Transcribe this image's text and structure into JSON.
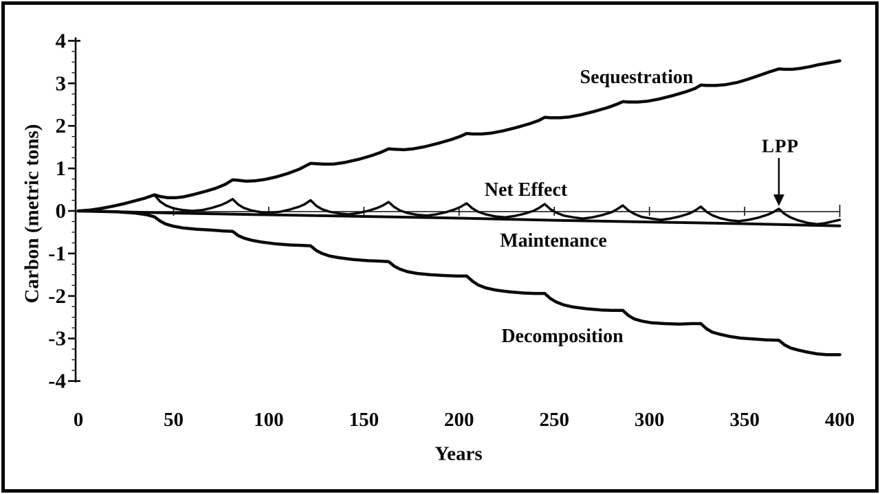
{
  "figure": {
    "background_color": "#ffffff",
    "frame_color": "#050505",
    "ink_color": "#0a0a0a"
  },
  "chart_data": {
    "type": "line",
    "title": "",
    "xlabel": "Years",
    "ylabel": "Carbon (metric tons)",
    "xlim": [
      0,
      400
    ],
    "ylim": [
      -4,
      4
    ],
    "x_ticks": [
      0,
      50,
      100,
      150,
      200,
      250,
      300,
      350,
      400
    ],
    "y_ticks": [
      4,
      3,
      2,
      1,
      0,
      -1,
      -2,
      -3,
      -4
    ],
    "grid": "off",
    "legend": "inline-labels",
    "zero_line": true,
    "zero_line_tick_years": [
      50,
      100,
      150,
      200,
      250,
      300,
      350,
      400
    ],
    "harvest_cycle_years": 41,
    "series": [
      {
        "name": "sequestration",
        "label": "Sequestration",
        "stroke_width": 4.5,
        "points": [
          [
            0,
            0
          ],
          [
            6,
            0.02
          ],
          [
            12,
            0.06
          ],
          [
            18,
            0.11
          ],
          [
            24,
            0.17
          ],
          [
            30,
            0.24
          ],
          [
            35,
            0.3
          ],
          [
            40,
            0.38
          ],
          [
            43,
            0.34
          ],
          [
            47,
            0.31
          ],
          [
            51,
            0.31
          ],
          [
            55,
            0.33
          ],
          [
            60,
            0.38
          ],
          [
            66,
            0.45
          ],
          [
            72,
            0.53
          ],
          [
            77,
            0.62
          ],
          [
            81,
            0.73
          ],
          [
            84,
            0.72
          ],
          [
            88,
            0.7
          ],
          [
            93,
            0.71
          ],
          [
            98,
            0.74
          ],
          [
            104,
            0.8
          ],
          [
            110,
            0.88
          ],
          [
            116,
            0.98
          ],
          [
            122,
            1.12
          ],
          [
            125,
            1.11
          ],
          [
            129,
            1.1
          ],
          [
            134,
            1.1
          ],
          [
            140,
            1.14
          ],
          [
            147,
            1.21
          ],
          [
            154,
            1.3
          ],
          [
            159,
            1.38
          ],
          [
            163,
            1.46
          ],
          [
            166,
            1.45
          ],
          [
            171,
            1.44
          ],
          [
            176,
            1.46
          ],
          [
            182,
            1.51
          ],
          [
            189,
            1.59
          ],
          [
            196,
            1.68
          ],
          [
            201,
            1.76
          ],
          [
            204,
            1.82
          ],
          [
            207,
            1.81
          ],
          [
            212,
            1.81
          ],
          [
            217,
            1.83
          ],
          [
            223,
            1.88
          ],
          [
            230,
            1.96
          ],
          [
            237,
            2.05
          ],
          [
            242,
            2.13
          ],
          [
            245,
            2.2
          ],
          [
            248,
            2.19
          ],
          [
            253,
            2.19
          ],
          [
            258,
            2.21
          ],
          [
            264,
            2.26
          ],
          [
            271,
            2.34
          ],
          [
            278,
            2.43
          ],
          [
            283,
            2.51
          ],
          [
            286,
            2.57
          ],
          [
            289,
            2.56
          ],
          [
            294,
            2.56
          ],
          [
            299,
            2.58
          ],
          [
            305,
            2.63
          ],
          [
            312,
            2.71
          ],
          [
            319,
            2.8
          ],
          [
            324,
            2.88
          ],
          [
            327,
            2.96
          ],
          [
            330,
            2.95
          ],
          [
            335,
            2.95
          ],
          [
            340,
            2.97
          ],
          [
            346,
            3.02
          ],
          [
            352,
            3.1
          ],
          [
            358,
            3.19
          ],
          [
            363,
            3.27
          ],
          [
            368,
            3.34
          ],
          [
            371,
            3.33
          ],
          [
            375,
            3.33
          ],
          [
            379,
            3.35
          ],
          [
            384,
            3.39
          ],
          [
            389,
            3.44
          ],
          [
            394,
            3.48
          ],
          [
            400,
            3.53
          ]
        ]
      },
      {
        "name": "net_effect",
        "label": "Net Effect",
        "stroke_width": 3.5,
        "points": [
          [
            0,
            0
          ],
          [
            6,
            0.02
          ],
          [
            12,
            0.06
          ],
          [
            18,
            0.11
          ],
          [
            24,
            0.17
          ],
          [
            30,
            0.24
          ],
          [
            35,
            0.3
          ],
          [
            40,
            0.37
          ],
          [
            43,
            0.22
          ],
          [
            46,
            0.13
          ],
          [
            50,
            0.06
          ],
          [
            55,
            0.02
          ],
          [
            60,
            0.0
          ],
          [
            65,
            0.02
          ],
          [
            70,
            0.07
          ],
          [
            75,
            0.14
          ],
          [
            78,
            0.2
          ],
          [
            81,
            0.28
          ],
          [
            84,
            0.15
          ],
          [
            87,
            0.07
          ],
          [
            91,
            0.01
          ],
          [
            96,
            -0.03
          ],
          [
            101,
            -0.04
          ],
          [
            106,
            -0.02
          ],
          [
            111,
            0.03
          ],
          [
            116,
            0.1
          ],
          [
            119,
            0.16
          ],
          [
            122,
            0.25
          ],
          [
            125,
            0.12
          ],
          [
            128,
            0.04
          ],
          [
            132,
            -0.02
          ],
          [
            137,
            -0.06
          ],
          [
            142,
            -0.08
          ],
          [
            147,
            -0.05
          ],
          [
            152,
            0.0
          ],
          [
            157,
            0.07
          ],
          [
            160,
            0.13
          ],
          [
            163,
            0.21
          ],
          [
            166,
            0.09
          ],
          [
            169,
            0.01
          ],
          [
            173,
            -0.05
          ],
          [
            178,
            -0.09
          ],
          [
            183,
            -0.11
          ],
          [
            188,
            -0.08
          ],
          [
            193,
            -0.03
          ],
          [
            198,
            0.04
          ],
          [
            201,
            0.1
          ],
          [
            204,
            0.18
          ],
          [
            207,
            0.06
          ],
          [
            210,
            -0.02
          ],
          [
            214,
            -0.08
          ],
          [
            219,
            -0.13
          ],
          [
            224,
            -0.15
          ],
          [
            229,
            -0.12
          ],
          [
            234,
            -0.07
          ],
          [
            239,
            0.0
          ],
          [
            242,
            0.07
          ],
          [
            245,
            0.16
          ],
          [
            248,
            0.04
          ],
          [
            251,
            -0.04
          ],
          [
            255,
            -0.11
          ],
          [
            260,
            -0.15
          ],
          [
            265,
            -0.18
          ],
          [
            270,
            -0.15
          ],
          [
            275,
            -0.1
          ],
          [
            280,
            -0.03
          ],
          [
            283,
            0.04
          ],
          [
            286,
            0.13
          ],
          [
            289,
            0.01
          ],
          [
            292,
            -0.07
          ],
          [
            296,
            -0.14
          ],
          [
            301,
            -0.18
          ],
          [
            306,
            -0.21
          ],
          [
            311,
            -0.18
          ],
          [
            316,
            -0.13
          ],
          [
            321,
            -0.06
          ],
          [
            324,
            0.01
          ],
          [
            327,
            0.1
          ],
          [
            330,
            -0.02
          ],
          [
            333,
            -0.1
          ],
          [
            337,
            -0.17
          ],
          [
            342,
            -0.22
          ],
          [
            347,
            -0.24
          ],
          [
            352,
            -0.21
          ],
          [
            357,
            -0.16
          ],
          [
            362,
            -0.09
          ],
          [
            365,
            -0.03
          ],
          [
            368,
            0.05
          ],
          [
            371,
            -0.07
          ],
          [
            374,
            -0.15
          ],
          [
            378,
            -0.22
          ],
          [
            383,
            -0.28
          ],
          [
            388,
            -0.31
          ],
          [
            392,
            -0.29
          ],
          [
            396,
            -0.25
          ],
          [
            400,
            -0.21
          ]
        ]
      },
      {
        "name": "maintenance",
        "label": "Maintenance",
        "stroke_width": 4,
        "points": [
          [
            0,
            0
          ],
          [
            50,
            -0.05
          ],
          [
            100,
            -0.09
          ],
          [
            150,
            -0.13
          ],
          [
            200,
            -0.17
          ],
          [
            250,
            -0.22
          ],
          [
            300,
            -0.26
          ],
          [
            350,
            -0.3
          ],
          [
            400,
            -0.35
          ]
        ]
      },
      {
        "name": "decomposition",
        "label": "Decomposition",
        "stroke_width": 4.5,
        "points": [
          [
            0,
            0
          ],
          [
            10,
            -0.01
          ],
          [
            20,
            -0.02
          ],
          [
            30,
            -0.05
          ],
          [
            36,
            -0.09
          ],
          [
            40,
            -0.14
          ],
          [
            43,
            -0.24
          ],
          [
            46,
            -0.31
          ],
          [
            50,
            -0.36
          ],
          [
            55,
            -0.4
          ],
          [
            62,
            -0.43
          ],
          [
            70,
            -0.45
          ],
          [
            76,
            -0.47
          ],
          [
            81,
            -0.48
          ],
          [
            84,
            -0.58
          ],
          [
            87,
            -0.64
          ],
          [
            91,
            -0.69
          ],
          [
            96,
            -0.73
          ],
          [
            103,
            -0.77
          ],
          [
            111,
            -0.8
          ],
          [
            117,
            -0.81
          ],
          [
            122,
            -0.82
          ],
          [
            125,
            -0.93
          ],
          [
            128,
            -1.0
          ],
          [
            132,
            -1.06
          ],
          [
            137,
            -1.1
          ],
          [
            144,
            -1.14
          ],
          [
            152,
            -1.17
          ],
          [
            158,
            -1.18
          ],
          [
            163,
            -1.19
          ],
          [
            166,
            -1.3
          ],
          [
            169,
            -1.37
          ],
          [
            173,
            -1.43
          ],
          [
            178,
            -1.47
          ],
          [
            185,
            -1.5
          ],
          [
            193,
            -1.52
          ],
          [
            199,
            -1.53
          ],
          [
            204,
            -1.53
          ],
          [
            207,
            -1.65
          ],
          [
            210,
            -1.74
          ],
          [
            214,
            -1.81
          ],
          [
            219,
            -1.86
          ],
          [
            226,
            -1.9
          ],
          [
            234,
            -1.93
          ],
          [
            240,
            -1.94
          ],
          [
            245,
            -1.94
          ],
          [
            248,
            -2.06
          ],
          [
            251,
            -2.14
          ],
          [
            255,
            -2.21
          ],
          [
            260,
            -2.26
          ],
          [
            267,
            -2.3
          ],
          [
            275,
            -2.33
          ],
          [
            281,
            -2.34
          ],
          [
            286,
            -2.34
          ],
          [
            289,
            -2.46
          ],
          [
            292,
            -2.54
          ],
          [
            296,
            -2.59
          ],
          [
            301,
            -2.63
          ],
          [
            308,
            -2.65
          ],
          [
            316,
            -2.66
          ],
          [
            322,
            -2.65
          ],
          [
            327,
            -2.65
          ],
          [
            330,
            -2.77
          ],
          [
            333,
            -2.85
          ],
          [
            337,
            -2.9
          ],
          [
            342,
            -2.95
          ],
          [
            348,
            -2.99
          ],
          [
            354,
            -3.01
          ],
          [
            361,
            -3.03
          ],
          [
            368,
            -3.04
          ],
          [
            371,
            -3.15
          ],
          [
            374,
            -3.22
          ],
          [
            378,
            -3.27
          ],
          [
            383,
            -3.32
          ],
          [
            388,
            -3.36
          ],
          [
            393,
            -3.38
          ],
          [
            400,
            -3.38
          ]
        ]
      }
    ],
    "annotations": {
      "lpp": {
        "label": "LPP",
        "x": 368,
        "arrow": "down"
      }
    }
  }
}
